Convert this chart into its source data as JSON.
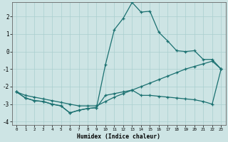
{
  "xlabel": "Humidex (Indice chaleur)",
  "bg_color": "#cde4e4",
  "grid_color": "#aacfcf",
  "line_color": "#1a7070",
  "xlim": [
    -0.5,
    23.5
  ],
  "ylim": [
    -4.2,
    2.8
  ],
  "yticks": [
    -4,
    -3,
    -2,
    -1,
    0,
    1,
    2
  ],
  "xticks": [
    0,
    1,
    2,
    3,
    4,
    5,
    6,
    7,
    8,
    9,
    10,
    11,
    12,
    13,
    14,
    15,
    16,
    17,
    18,
    19,
    20,
    21,
    22,
    23
  ],
  "series_main_x": [
    0,
    1,
    2,
    3,
    4,
    5,
    6,
    7,
    8,
    9,
    10,
    11,
    12,
    13,
    14,
    15,
    16,
    17,
    18,
    19,
    20,
    21,
    22,
    23
  ],
  "series_main_y": [
    -2.3,
    -2.65,
    -2.8,
    -2.85,
    -3.0,
    -3.1,
    -3.5,
    -3.35,
    -3.25,
    -3.2,
    -0.75,
    1.25,
    1.9,
    2.8,
    2.25,
    2.3,
    1.1,
    0.6,
    0.05,
    0.0,
    0.05,
    -0.45,
    -0.45,
    -1.0
  ],
  "series_diag_x": [
    0,
    1,
    2,
    3,
    4,
    5,
    6,
    7,
    8,
    9,
    10,
    11,
    12,
    13,
    14,
    15,
    16,
    17,
    18,
    19,
    20,
    21,
    22,
    23
  ],
  "series_diag_y": [
    -2.3,
    -2.5,
    -2.6,
    -2.7,
    -2.8,
    -2.9,
    -3.0,
    -3.1,
    -3.1,
    -3.1,
    -2.85,
    -2.6,
    -2.4,
    -2.2,
    -2.0,
    -1.8,
    -1.6,
    -1.4,
    -1.2,
    -1.0,
    -0.85,
    -0.7,
    -0.55,
    -1.0
  ],
  "series_flat_x": [
    0,
    1,
    2,
    3,
    4,
    5,
    6,
    7,
    8,
    9,
    10,
    11,
    12,
    13,
    14,
    15,
    16,
    17,
    18,
    19,
    20,
    21,
    22,
    23
  ],
  "series_flat_y": [
    -2.3,
    -2.65,
    -2.8,
    -2.85,
    -3.0,
    -3.1,
    -3.5,
    -3.35,
    -3.25,
    -3.2,
    -2.5,
    -2.4,
    -2.3,
    -2.2,
    -2.5,
    -2.5,
    -2.55,
    -2.6,
    -2.65,
    -2.7,
    -2.75,
    -2.85,
    -3.0,
    -1.0
  ]
}
